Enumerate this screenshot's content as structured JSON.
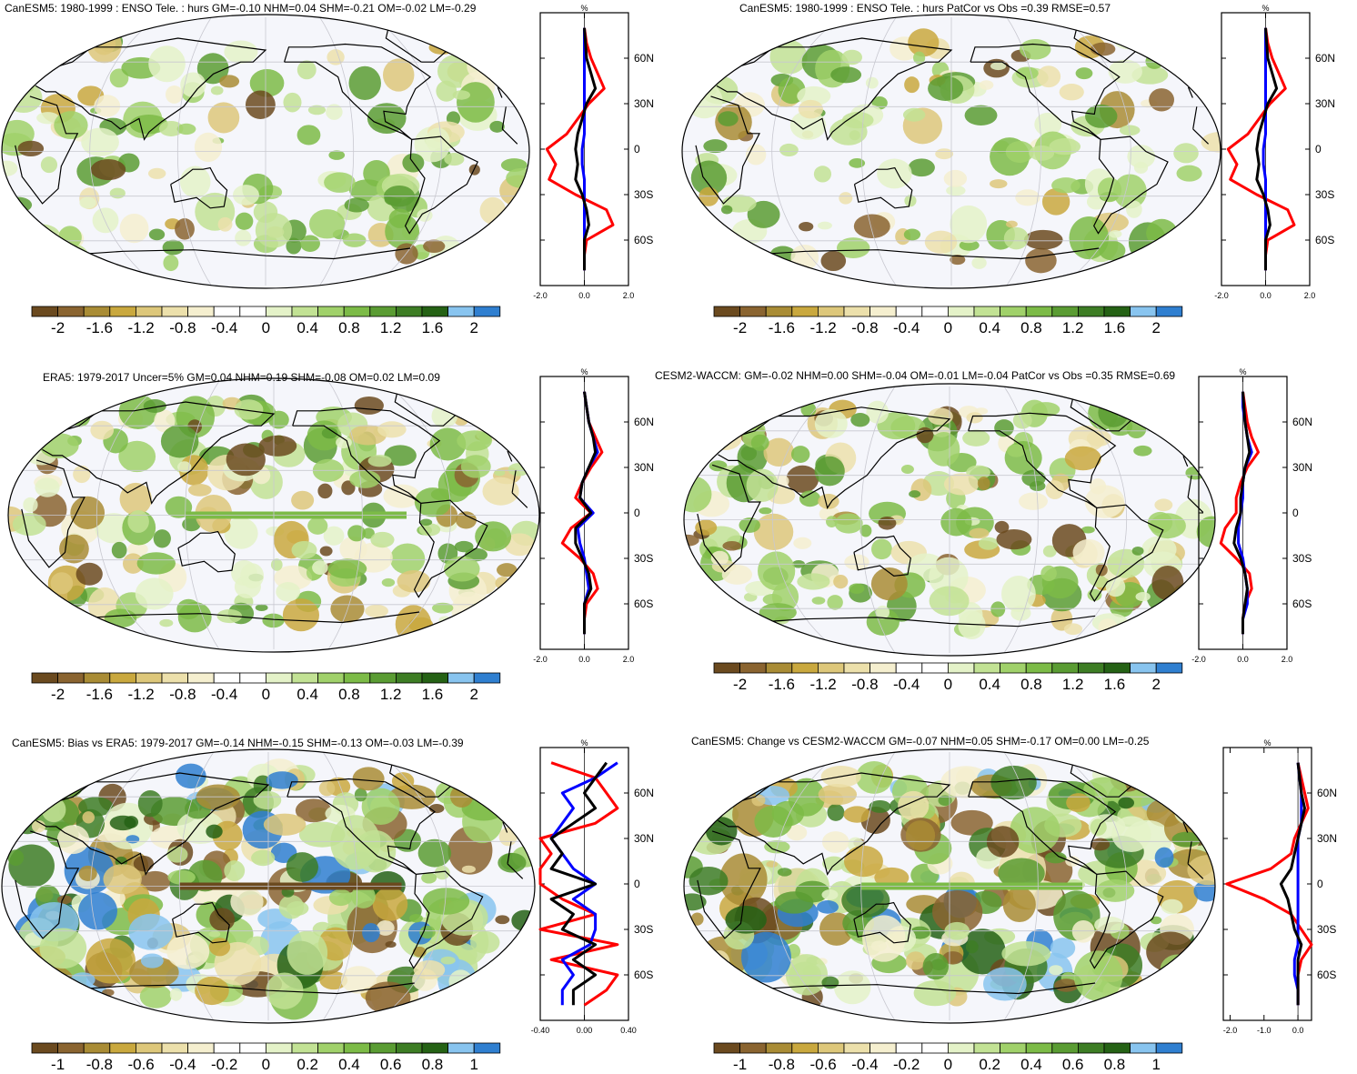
{
  "colors": {
    "palette": [
      "#6b4a1f",
      "#8a6430",
      "#a98c35",
      "#c9a83e",
      "#ddc77a",
      "#ece0ab",
      "#f5efcf",
      "#ffffff",
      "#ffffff",
      "#e4f2c8",
      "#c2e294",
      "#a0d16a",
      "#7cbb47",
      "#5a9c33",
      "#3d7d24",
      "#256215",
      "#88c4ef",
      "#2f7fd0"
    ],
    "land": "#000000",
    "ocean_bg": "#f5f6fb",
    "grid": "#c8c8d0",
    "line_red": "#ff0000",
    "line_blue": "#0000ff",
    "line_black": "#000000"
  },
  "panels": [
    {
      "id": "p1",
      "title": "CanESM5: 1980-1999 : ENSO Tele. : hurs GM=-0.10 NHM=0.04 SHM=-0.21 OM=-0.02 LM=-0.29",
      "colorbar_labels": [
        "-2",
        "-1.6",
        "-1.2",
        "-0.8",
        "-0.4",
        "0",
        "0.4",
        "0.8",
        "1.2",
        "1.6",
        "2"
      ],
      "zonal_unit": "%",
      "zonal_xticks": [
        "-2.0",
        "0.0",
        "2.0"
      ],
      "zonal_yticks": [
        "60N",
        "30N",
        "0",
        "30S",
        "60S"
      ]
    },
    {
      "id": "p2",
      "title": "CanESM5: 1980-1999 : ENSO Tele. : hurs PatCor vs Obs =0.39 RMSE=0.57",
      "colorbar_labels": [
        "-2",
        "-1.6",
        "-1.2",
        "-0.8",
        "-0.4",
        "0",
        "0.4",
        "0.8",
        "1.2",
        "1.6",
        "2"
      ],
      "zonal_unit": "%",
      "zonal_xticks": [
        "-2.0",
        "0.0",
        "2.0"
      ],
      "zonal_yticks": [
        "60N",
        "30N",
        "0",
        "30S",
        "60S"
      ]
    },
    {
      "id": "p3",
      "title": "ERA5: 1979-2017 Uncer=5% GM=0.04 NHM=0.19 SHM=-0.08 OM=0.02 LM=0.09",
      "colorbar_labels": [
        "-2",
        "-1.6",
        "-1.2",
        "-0.8",
        "-0.4",
        "0",
        "0.4",
        "0.8",
        "1.2",
        "1.6",
        "2"
      ],
      "zonal_unit": "%",
      "zonal_xticks": [
        "-2.0",
        "0.0",
        "2.0"
      ],
      "zonal_yticks": [
        "60N",
        "30N",
        "0",
        "30S",
        "60S"
      ]
    },
    {
      "id": "p4",
      "title": "CESM2-WACCM: GM=-0.02 NHM=0.00 SHM=-0.04 OM=-0.01 LM=-0.04 PatCor vs Obs =0.35 RMSE=0.69",
      "colorbar_labels": [
        "-2",
        "-1.6",
        "-1.2",
        "-0.8",
        "-0.4",
        "0",
        "0.4",
        "0.8",
        "1.2",
        "1.6",
        "2"
      ],
      "zonal_unit": "%",
      "zonal_xticks": [
        "-2.0",
        "0.0",
        "2.0"
      ],
      "zonal_yticks": [
        "60N",
        "30N",
        "0",
        "30S",
        "60S"
      ]
    },
    {
      "id": "p5",
      "title": "CanESM5: Bias vs ERA5: 1979-2017 GM=-0.14 NHM=-0.15 SHM=-0.13 OM=-0.03 LM=-0.39",
      "colorbar_labels": [
        "-1",
        "-0.8",
        "-0.6",
        "-0.4",
        "-0.2",
        "0",
        "0.2",
        "0.4",
        "0.6",
        "0.8",
        "1"
      ],
      "zonal_unit": "%",
      "zonal_xticks": [
        "-0.40",
        "0.00",
        "0.40"
      ],
      "zonal_yticks": [
        "60N",
        "30N",
        "0",
        "30S",
        "60S"
      ]
    },
    {
      "id": "p6",
      "title": "CanESM5: Change vs CESM2-WACCM GM=-0.07 NHM=0.05 SHM=-0.17 OM=0.00 LM=-0.25",
      "colorbar_labels": [
        "-1",
        "-0.8",
        "-0.6",
        "-0.4",
        "-0.2",
        "0",
        "0.2",
        "0.4",
        "0.6",
        "0.8",
        "1"
      ],
      "zonal_unit": "%",
      "zonal_xticks": [
        "-2.0",
        "-1.0",
        "0.0"
      ],
      "zonal_yticks": [
        "60N",
        "30N",
        "0",
        "30S",
        "60S"
      ]
    }
  ],
  "chart_data": [
    {
      "type": "heatmap",
      "title": "CanESM5: 1980-1999 : ENSO Tele. : hurs GM=-0.10 NHM=0.04 SHM=-0.21 OM=-0.02 LM=-0.29",
      "colorbar": [
        -2,
        2
      ],
      "zonal_mean": {
        "x_range": [
          -2,
          2
        ],
        "lat": [
          80,
          70,
          60,
          50,
          40,
          30,
          20,
          10,
          0,
          -10,
          -20,
          -30,
          -40,
          -50,
          -60,
          -70,
          -80
        ],
        "series": [
          {
            "color": "red",
            "values": [
              0,
              0.1,
              0.3,
              0.6,
              0.9,
              0.2,
              -0.3,
              -0.8,
              -1.7,
              -1.3,
              -1.6,
              -0.4,
              1.0,
              1.3,
              0.1,
              0,
              0
            ]
          },
          {
            "color": "blue",
            "values": [
              0,
              0,
              0,
              0,
              0,
              0,
              0,
              0,
              -0.1,
              -0.1,
              0,
              0,
              0,
              0,
              0,
              0,
              0
            ]
          },
          {
            "color": "black",
            "values": [
              0,
              0.05,
              0.1,
              0.3,
              0.5,
              0.1,
              -0.1,
              -0.3,
              -0.4,
              -0.3,
              -0.4,
              -0.1,
              0.1,
              0.2,
              0,
              0,
              0
            ]
          }
        ]
      }
    },
    {
      "type": "heatmap",
      "title": "CanESM5: 1980-1999 : ENSO Tele. : hurs PatCor vs Obs =0.39 RMSE=0.57",
      "colorbar": [
        -2,
        2
      ],
      "zonal_mean": {
        "x_range": [
          -2,
          2
        ],
        "lat": [
          80,
          70,
          60,
          50,
          40,
          30,
          20,
          10,
          0,
          -10,
          -20,
          -30,
          -40,
          -50,
          -60,
          -70,
          -80
        ],
        "series": [
          {
            "color": "red",
            "values": [
              0,
              0.1,
              0.3,
              0.6,
              0.9,
              0.2,
              -0.3,
              -0.8,
              -1.7,
              -1.3,
              -1.6,
              -0.4,
              1.0,
              1.3,
              0.1,
              0,
              0
            ]
          },
          {
            "color": "blue",
            "values": [
              0,
              0,
              0,
              0,
              0,
              0,
              0,
              0,
              -0.1,
              -0.1,
              0,
              0,
              0,
              0,
              0,
              0,
              0
            ]
          },
          {
            "color": "black",
            "values": [
              0,
              0.05,
              0.1,
              0.3,
              0.5,
              0.1,
              -0.1,
              -0.3,
              -0.4,
              -0.3,
              -0.4,
              -0.1,
              0.1,
              0.2,
              0,
              0,
              0
            ]
          }
        ]
      }
    },
    {
      "type": "heatmap",
      "title": "ERA5: 1979-2017 Uncer=5% GM=0.04 NHM=0.19 SHM=-0.08 OM=0.02 LM=0.09",
      "colorbar": [
        -2,
        2
      ],
      "zonal_mean": {
        "x_range": [
          -2,
          2
        ],
        "lat": [
          80,
          70,
          60,
          50,
          40,
          30,
          20,
          10,
          0,
          -10,
          -20,
          -30,
          -40,
          -50,
          -60,
          -70,
          -80
        ],
        "series": [
          {
            "color": "red",
            "values": [
              0,
              0.1,
              0.2,
              0.5,
              0.8,
              0.3,
              -0.1,
              -0.4,
              0.3,
              -0.6,
              -1.0,
              -0.2,
              0.4,
              0.6,
              0.1,
              0,
              0
            ]
          },
          {
            "color": "blue",
            "values": [
              0,
              0.1,
              0.2,
              0.4,
              0.6,
              0.2,
              -0.1,
              -0.2,
              0.4,
              -0.3,
              -0.2,
              0,
              0.1,
              0.2,
              0,
              0,
              0
            ]
          },
          {
            "color": "black",
            "values": [
              0,
              0.1,
              0.2,
              0.4,
              0.5,
              0.2,
              -0.1,
              -0.2,
              0.3,
              -0.4,
              -0.4,
              -0.1,
              0.2,
              0.3,
              0,
              0,
              0
            ]
          }
        ]
      }
    },
    {
      "type": "heatmap",
      "title": "CESM2-WACCM: GM=-0.02 NHM=0.00 SHM=-0.04 OM=-0.01 LM=-0.04 PatCor vs Obs =0.35 RMSE=0.69",
      "colorbar": [
        -2,
        2
      ],
      "zonal_mean": {
        "x_range": [
          -2,
          2
        ],
        "lat": [
          80,
          70,
          60,
          50,
          40,
          30,
          20,
          10,
          0,
          -10,
          -20,
          -30,
          -40,
          -50,
          -60,
          -70,
          -80
        ],
        "series": [
          {
            "color": "red",
            "values": [
              0,
              0.1,
              0.2,
              0.4,
              0.7,
              0.2,
              -0.1,
              -0.3,
              -0.3,
              -0.8,
              -1.0,
              -0.3,
              0.3,
              0.4,
              0.1,
              0,
              0
            ]
          },
          {
            "color": "blue",
            "values": [
              0,
              0,
              0.1,
              0.2,
              0.4,
              0.1,
              0,
              0,
              -0.1,
              -0.2,
              -0.2,
              0,
              0.1,
              0.2,
              0.2,
              0,
              0
            ]
          },
          {
            "color": "black",
            "values": [
              0,
              0.05,
              0.1,
              0.2,
              0.3,
              0.1,
              0,
              -0.1,
              -0.1,
              -0.3,
              -0.4,
              -0.1,
              0.1,
              0.2,
              0.1,
              0,
              0
            ]
          }
        ]
      }
    },
    {
      "type": "heatmap",
      "title": "CanESM5: Bias vs ERA5: 1979-2017 GM=-0.14 NHM=-0.15 SHM=-0.13 OM=-0.03 LM=-0.39",
      "colorbar": [
        -1,
        1
      ],
      "zonal_mean": {
        "x_range": [
          -0.4,
          0.4
        ],
        "lat": [
          80,
          70,
          60,
          50,
          40,
          30,
          20,
          10,
          0,
          -10,
          -20,
          -30,
          -40,
          -50,
          -60,
          -70,
          -80
        ],
        "series": [
          {
            "color": "red",
            "values": [
              -0.3,
              0.1,
              0.2,
              0.3,
              0.1,
              -0.4,
              -0.3,
              -0.5,
              -0.4,
              -0.2,
              0.1,
              -0.4,
              0.3,
              -0.3,
              0.3,
              0.2,
              0
            ]
          },
          {
            "color": "blue",
            "values": [
              0.3,
              0.1,
              -0.2,
              -0.1,
              -0.2,
              -0.3,
              -0.2,
              -0.1,
              0.1,
              -0.1,
              0.1,
              0.1,
              0.05,
              -0.2,
              -0.1,
              -0.2,
              -0.2
            ]
          },
          {
            "color": "black",
            "values": [
              0.2,
              0.1,
              0,
              0.1,
              -0.1,
              -0.3,
              -0.2,
              -0.3,
              0.1,
              -0.3,
              -0.1,
              -0.2,
              0.1,
              -0.1,
              0.1,
              -0.1,
              -0.1
            ]
          }
        ]
      }
    },
    {
      "type": "heatmap",
      "title": "CanESM5: Change vs CESM2-WACCM GM=-0.07 NHM=0.05 SHM=-0.17 OM=0.00 LM=-0.25",
      "colorbar": [
        -1,
        1
      ],
      "zonal_mean": {
        "x_range": [
          -2.2,
          0.4
        ],
        "lat": [
          80,
          70,
          60,
          50,
          40,
          30,
          20,
          10,
          0,
          -10,
          -20,
          -30,
          -40,
          -50,
          -60,
          -70,
          -80
        ],
        "series": [
          {
            "color": "red",
            "values": [
              0,
              0.1,
              0.2,
              0.3,
              0.1,
              -0.1,
              -0.2,
              -0.8,
              -2.1,
              -1.0,
              -0.2,
              0.1,
              0.4,
              0.1,
              0,
              0,
              0
            ]
          },
          {
            "color": "blue",
            "values": [
              0,
              0.05,
              0.1,
              0.1,
              0.1,
              0,
              0,
              0,
              0,
              0,
              0,
              0,
              0,
              -0.1,
              -0.1,
              0,
              0
            ]
          },
          {
            "color": "black",
            "values": [
              0,
              0.05,
              0.1,
              0.2,
              0.1,
              0,
              -0.1,
              -0.2,
              -0.5,
              -0.3,
              -0.2,
              -0.1,
              0.1,
              0,
              0,
              0,
              0
            ]
          }
        ]
      }
    }
  ]
}
